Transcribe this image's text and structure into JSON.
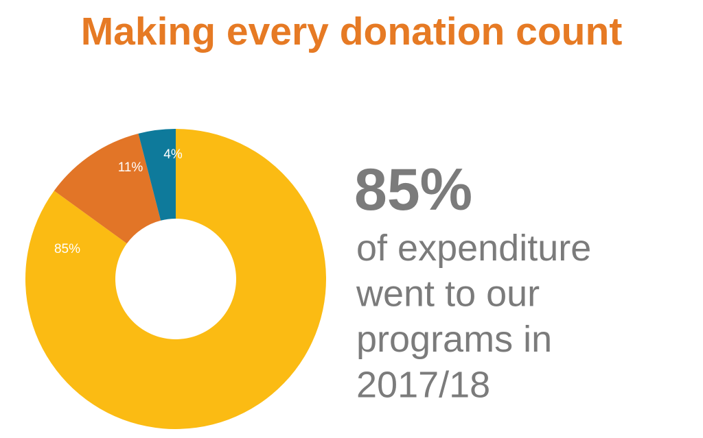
{
  "chart_data": {
    "type": "pie",
    "title": "Making every donation count",
    "values": [
      85,
      11,
      4
    ],
    "value_labels": [
      "85%",
      "11%",
      "4%"
    ],
    "colors": [
      "#fbbb13",
      "#e27527",
      "#0e7a9b"
    ],
    "donut": true,
    "annotation": {
      "headline": "85%",
      "lines": [
        "of expenditure",
        "went to our",
        "programs in",
        "2017/18"
      ]
    }
  }
}
